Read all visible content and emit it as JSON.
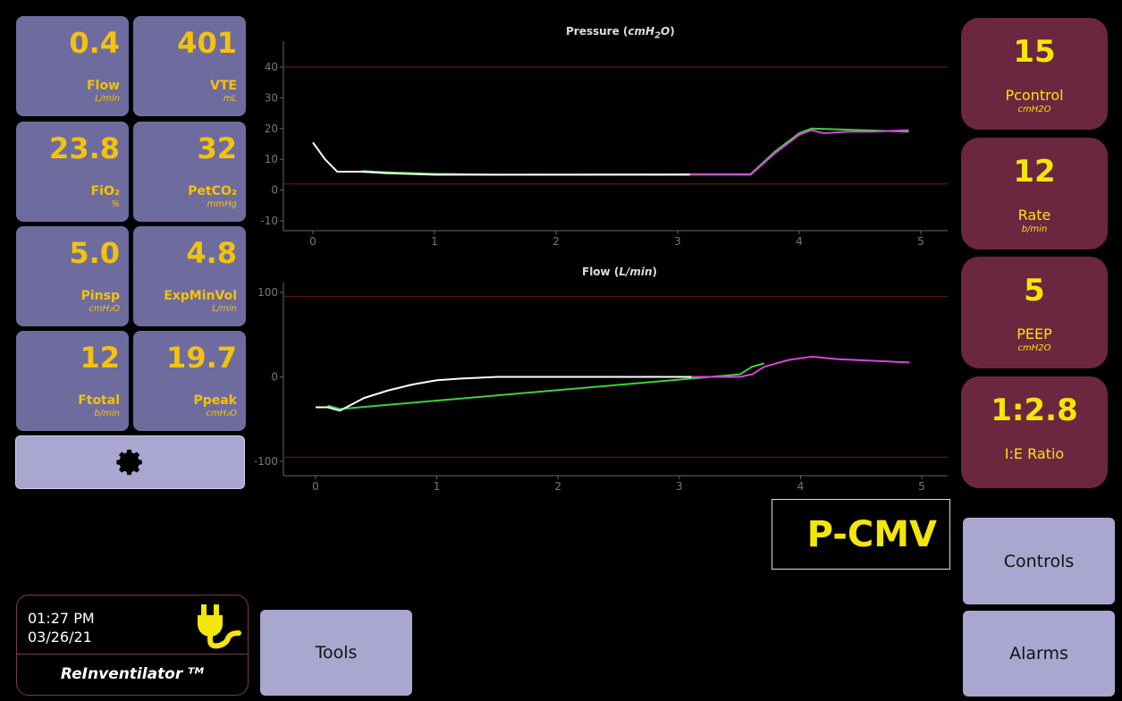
{
  "vitals": [
    {
      "value": "0.4",
      "label": "Flow",
      "unit": "L/min"
    },
    {
      "value": "401",
      "label": "VTE",
      "unit": "mL"
    },
    {
      "value": "23.8",
      "label": "FiO₂",
      "unit": "%"
    },
    {
      "value": "32",
      "label": "PetCO₂",
      "unit": "mmHg"
    },
    {
      "value": "5.0",
      "label": "Pinsp",
      "unit": "cmH₂O"
    },
    {
      "value": "4.8",
      "label": "ExpMinVol",
      "unit": "L/min"
    },
    {
      "value": "12",
      "label": "Ftotal",
      "unit": "b/min"
    },
    {
      "value": "19.7",
      "label": "Ppeak",
      "unit": "cmH₂O"
    }
  ],
  "settings_icon": "gear-icon",
  "controls": [
    {
      "value": "15",
      "label": "Pcontrol",
      "unit": "cmH2O"
    },
    {
      "value": "12",
      "label": "Rate",
      "unit": "b/min"
    },
    {
      "value": "5",
      "label": "PEEP",
      "unit": "cmH2O"
    },
    {
      "value": "1:2.8",
      "label": "I:E Ratio",
      "unit": ""
    }
  ],
  "mode": "P-CMV",
  "buttons": {
    "controls": "Controls",
    "alarms": "Alarms",
    "tools": "Tools"
  },
  "clock": {
    "time": "01:27 PM",
    "date": "03/26/21",
    "brand": "ReInventilator ᵀᴹ",
    "power_icon": "plug-icon"
  },
  "colors": {
    "tile": "#6e6c9e",
    "control": "#6b2740",
    "value_yellow": "#f4c20d",
    "limit_line": "#7a1a1a"
  },
  "chart_data": [
    {
      "type": "line",
      "title": "Pressure (cmH₂O)",
      "xlim": [
        0,
        5
      ],
      "ylim": [
        -10,
        40
      ],
      "xticks": [
        0,
        1,
        2,
        3,
        4,
        5
      ],
      "yticks": [
        -10,
        0,
        10,
        20,
        30,
        40
      ],
      "limits": [
        40,
        2
      ],
      "series": [
        {
          "color": "#ffffff",
          "x": [
            0,
            0.1,
            0.2,
            0.4,
            0.6,
            1,
            1.5,
            2,
            2.5,
            3.1
          ],
          "y": [
            15.5,
            10,
            6,
            6,
            5.5,
            5,
            5,
            5,
            5,
            5
          ]
        },
        {
          "color": "#e040e0",
          "x": [
            3.1,
            3.3,
            3.6,
            3.8,
            4.0,
            4.1,
            4.2,
            4.4,
            4.6,
            4.9
          ],
          "y": [
            5,
            5,
            5,
            12,
            18,
            19.5,
            18.5,
            19,
            19,
            19.5
          ]
        },
        {
          "color": "#3cd23c",
          "x": [
            0.4,
            0.6,
            1,
            1.2,
            1.5,
            3.6,
            3.8,
            4.0,
            4.1,
            4.9
          ],
          "y": [
            6.2,
            5.8,
            5.3,
            5.2,
            5,
            5.2,
            12.5,
            18.5,
            20,
            19
          ]
        }
      ]
    },
    {
      "type": "line",
      "title": "Flow (L/min)",
      "xlim": [
        0,
        5
      ],
      "ylim": [
        -100,
        100
      ],
      "xticks": [
        0,
        1,
        2,
        3,
        4,
        5
      ],
      "yticks": [
        -100,
        0,
        100
      ],
      "limits": [
        95,
        -95
      ],
      "series": [
        {
          "color": "#ffffff",
          "x": [
            0,
            0.1,
            0.2,
            0.4,
            0.6,
            0.8,
            1,
            1.2,
            1.5,
            2,
            2.5,
            3.1
          ],
          "y": [
            -36,
            -36,
            -40,
            -25,
            -16,
            -9,
            -4,
            -2,
            0,
            0,
            0,
            0
          ]
        },
        {
          "color": "#e040e0",
          "x": [
            3.1,
            3.3,
            3.5,
            3.6,
            3.7,
            3.9,
            4.1,
            4.3,
            4.6,
            4.9
          ],
          "y": [
            0,
            0,
            0,
            3,
            12,
            20,
            24,
            21,
            19,
            17
          ]
        },
        {
          "color": "#3cd23c",
          "x": [
            0.1,
            0.2,
            3.5,
            3.6,
            3.7
          ],
          "y": [
            -34,
            -38,
            3,
            12,
            16
          ]
        }
      ]
    }
  ]
}
